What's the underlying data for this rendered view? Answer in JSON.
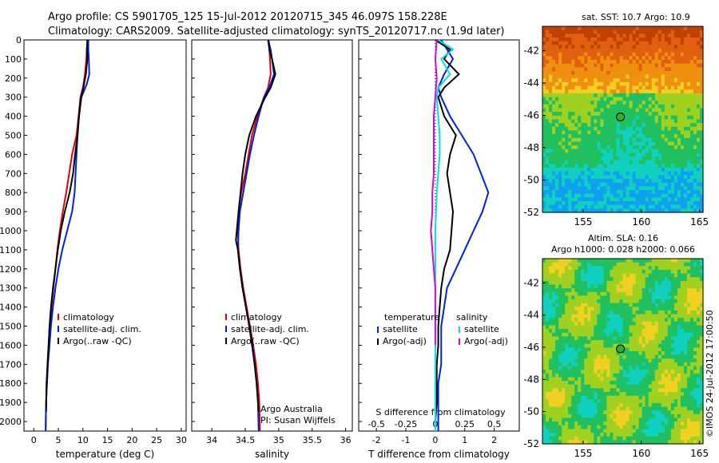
{
  "title_line1": "Argo profile: CS 5901705_125 15-Jul-2012 20120715_345 46.097S 158.228E",
  "title_line2": "Climatology: CARS2009. Satellite-adjusted climatology: synTS_20120717.nc (1.9d later)",
  "sst_title": "sat. SST: 10.7 Argo: 10.9",
  "sla_title1": "Altim. SLA: 0.16",
  "sla_title2": "Argo h1000: 0.028 h2000: 0.066",
  "side_label": "©IMOS 24-Jul-2012 17:00:50",
  "annot_argo": "Argo Australia",
  "annot_pi": "PI: Susan Wijffels",
  "colors": {
    "climatology": "#e00000",
    "satellite": "#0020e0",
    "argo": "#000000",
    "satellite_s": "#00e0e0",
    "argo_s": "#e000e0"
  },
  "chart_data": [
    {
      "type": "line",
      "xlabel": "temperature (deg C)",
      "ylabel": "",
      "xlim": [
        -2,
        31
      ],
      "ylim": [
        2050,
        0
      ],
      "x_ticks": [
        0,
        5,
        10,
        15,
        20,
        25,
        30
      ],
      "y_ticks": [
        0,
        100,
        200,
        300,
        400,
        500,
        600,
        700,
        800,
        900,
        1000,
        1100,
        1200,
        1300,
        1400,
        1500,
        1600,
        1700,
        1800,
        1900,
        2000
      ],
      "legend": [
        "climatology",
        "satellite-adj. clim.",
        "Argo(..raw -QC)"
      ],
      "legend_position": "lower-right",
      "series": [
        {
          "name": "climatology",
          "color": "#e00000",
          "x": [
            10.9,
            10.8,
            10.7,
            10.4,
            10.0,
            9.5,
            9.1,
            8.7,
            7.8,
            7.2,
            6.6,
            5.9,
            5.3,
            4.8,
            4.4,
            4.0,
            3.6,
            3.3,
            3.0,
            2.8,
            2.6,
            2.5,
            2.4
          ],
          "y": [
            0,
            50,
            100,
            180,
            250,
            300,
            400,
            500,
            600,
            700,
            800,
            900,
            1000,
            1100,
            1200,
            1300,
            1400,
            1500,
            1600,
            1700,
            1800,
            1900,
            2050
          ]
        },
        {
          "name": "satellite-adj. clim.",
          "color": "#0020e0",
          "x": [
            11.1,
            11.1,
            11.2,
            11.3,
            10.8,
            9.7,
            9.2,
            8.9,
            8.7,
            8.5,
            8.3,
            7.8,
            6.8,
            5.8,
            5.0,
            4.4,
            3.9,
            3.5,
            3.2,
            2.9,
            2.7,
            2.5,
            2.4
          ],
          "y": [
            0,
            50,
            100,
            180,
            230,
            300,
            400,
            500,
            600,
            700,
            800,
            900,
            1000,
            1100,
            1200,
            1300,
            1400,
            1500,
            1600,
            1700,
            1800,
            1900,
            2050
          ]
        },
        {
          "name": "Argo(..raw -QC)",
          "color": "#000000",
          "x": [
            10.9,
            10.8,
            10.9,
            10.6,
            10.1,
            9.6,
            9.2,
            8.9,
            8.4,
            8.0,
            7.3,
            6.3,
            5.5,
            4.9,
            4.4,
            3.9,
            3.5,
            3.2,
            3.0,
            2.8,
            2.6,
            2.5
          ],
          "y": [
            0,
            50,
            100,
            180,
            250,
            300,
            400,
            500,
            600,
            700,
            800,
            900,
            1000,
            1100,
            1200,
            1300,
            1400,
            1500,
            1600,
            1700,
            1800,
            1950
          ]
        }
      ]
    },
    {
      "type": "line",
      "xlabel": "salinity",
      "ylabel": "",
      "xlim": [
        33.7,
        36.1
      ],
      "ylim": [
        2050,
        0
      ],
      "x_ticks": [
        34,
        34.5,
        35,
        35.5,
        36
      ],
      "legend": [
        "climatology",
        "satellite-adj. clim.",
        "Argo(..raw -QC)"
      ],
      "legend_position": "lower-right",
      "series": [
        {
          "name": "climatology",
          "color": "#e00000",
          "x": [
            34.84,
            34.86,
            34.87,
            34.88,
            34.84,
            34.78,
            34.68,
            34.6,
            34.55,
            34.5,
            34.44,
            34.4,
            34.39,
            34.4,
            34.43,
            34.47,
            34.52,
            34.57,
            34.62,
            34.66,
            34.69,
            34.71,
            34.72
          ],
          "y": [
            0,
            50,
            100,
            180,
            250,
            300,
            400,
            500,
            600,
            700,
            800,
            900,
            1000,
            1100,
            1200,
            1300,
            1400,
            1500,
            1600,
            1700,
            1800,
            1900,
            2050
          ]
        },
        {
          "name": "satellite-adj. clim.",
          "color": "#0020e0",
          "x": [
            34.84,
            34.88,
            34.9,
            34.93,
            34.86,
            34.78,
            34.7,
            34.63,
            34.57,
            34.52,
            34.47,
            34.42,
            34.4,
            34.39,
            34.42,
            34.46,
            34.51,
            34.56,
            34.61,
            34.64,
            34.67,
            34.69,
            34.7
          ],
          "y": [
            0,
            50,
            100,
            180,
            250,
            300,
            400,
            500,
            600,
            700,
            800,
            900,
            1000,
            1100,
            1200,
            1300,
            1400,
            1500,
            1600,
            1700,
            1800,
            1900,
            2050
          ]
        },
        {
          "name": "Argo(..raw -QC)",
          "color": "#000000",
          "x": [
            34.85,
            34.86,
            34.9,
            34.95,
            34.88,
            34.8,
            34.66,
            34.56,
            34.5,
            34.46,
            34.43,
            34.4,
            34.36,
            34.39,
            34.42,
            34.46,
            34.51,
            34.56,
            34.6,
            34.64,
            34.67,
            34.7
          ],
          "y": [
            0,
            50,
            100,
            180,
            250,
            300,
            400,
            500,
            600,
            700,
            800,
            900,
            1050,
            1100,
            1200,
            1300,
            1400,
            1500,
            1600,
            1700,
            1800,
            1950
          ]
        }
      ]
    },
    {
      "type": "line",
      "xlabel": "T difference from climatology",
      "xlabel_top": "S difference from climatology",
      "xlim": [
        -2.6,
        2.85
      ],
      "ylim": [
        2050,
        0
      ],
      "x_ticks": [
        -2,
        -1,
        0,
        1,
        2
      ],
      "x_ticks_top": [
        "-0.5",
        "-0.25",
        "0",
        "0.25",
        "0.5"
      ],
      "legend_left_title": "temperature",
      "legend_right_title": "salinity",
      "legend_left": [
        "satellite",
        "Argo(-adj)"
      ],
      "legend_right": [
        "satellite",
        "Argo(-adj)"
      ],
      "series": [
        {
          "name": "T satellite",
          "color": "#0020e0",
          "x": [
            0.2,
            0.4,
            0.6,
            0.3,
            0.1,
            0.2,
            0.5,
            0.9,
            1.3,
            1.8,
            1.6,
            1.3,
            1.0,
            0.7,
            0.4,
            0.3,
            0.2,
            0.2,
            0.2,
            0.1,
            0.1,
            0.1
          ],
          "y": [
            0,
            50,
            100,
            180,
            250,
            300,
            400,
            500,
            600,
            800,
            900,
            1000,
            1100,
            1200,
            1300,
            1400,
            1500,
            1600,
            1700,
            1800,
            1900,
            2050
          ]
        },
        {
          "name": "T Argo(-adj)",
          "color": "#000000",
          "x": [
            0.0,
            0.5,
            0.3,
            0.8,
            0.3,
            0.1,
            0.3,
            0.7,
            0.5,
            0.4,
            0.6,
            0.5,
            0.3,
            0.2,
            0.15,
            0.1,
            0.1,
            0.05,
            0.05,
            0.05,
            0.0
          ],
          "y": [
            0,
            50,
            100,
            180,
            250,
            300,
            400,
            500,
            600,
            700,
            900,
            1100,
            1200,
            1300,
            1400,
            1500,
            1600,
            1700,
            1800,
            1900,
            2000
          ]
        },
        {
          "name": "S satellite",
          "color": "#00e0e0",
          "x": [
            0.1,
            0.6,
            0.2,
            0.5,
            0.1,
            0.05,
            0.1,
            0.15,
            0.15,
            0.1,
            0.05,
            0.0,
            0.0,
            0.0,
            0.0,
            0.0,
            0.0,
            0.0,
            0.0,
            0.0,
            0.0
          ],
          "y": [
            0,
            50,
            100,
            180,
            250,
            300,
            400,
            500,
            600,
            700,
            800,
            1000,
            1200,
            1400,
            1500,
            1600,
            1700,
            1800,
            1900,
            2000,
            2050
          ]
        },
        {
          "name": "S Argo(-adj)",
          "color": "#e000e0",
          "x": [
            0.05,
            0.0,
            0.05,
            0.0,
            -0.05,
            -0.05,
            -0.05,
            -0.05,
            -0.1,
            -0.1,
            -0.15,
            -0.1,
            -0.05,
            0.0,
            0.0,
            0.0
          ],
          "y": [
            0,
            100,
            200,
            300,
            400,
            500,
            600,
            700,
            800,
            900,
            1000,
            1100,
            1200,
            1300,
            1400,
            1600
          ]
        }
      ]
    },
    {
      "type": "heatmap",
      "title": "sat. SST: 10.7 Argo: 10.9",
      "xlim": [
        151.5,
        165.3
      ],
      "ylim": [
        -52,
        -40.5
      ],
      "x_ticks": [
        155,
        160,
        165
      ],
      "y_ticks": [
        -42,
        -44,
        -46,
        -48,
        -50,
        -52
      ],
      "marker": {
        "lon": 158.2,
        "lat": -46.1
      }
    },
    {
      "type": "heatmap",
      "title": "Altim. SLA: 0.16",
      "xlim": [
        151.5,
        165.3
      ],
      "ylim": [
        -52,
        -40.5
      ],
      "x_ticks": [
        155,
        160,
        165
      ],
      "y_ticks": [
        -42,
        -44,
        -46,
        -48,
        -50,
        -52
      ],
      "marker": {
        "lon": 158.2,
        "lat": -46.1
      }
    }
  ]
}
